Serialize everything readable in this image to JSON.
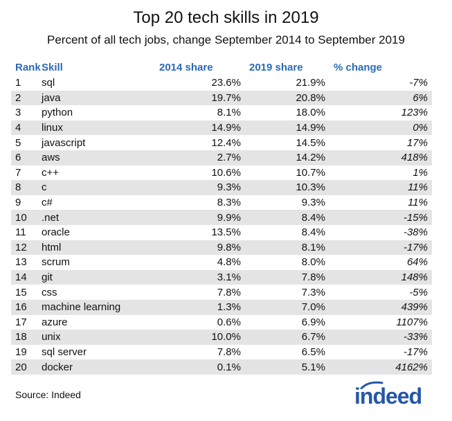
{
  "chart_data": {
    "type": "table",
    "title": "Top 20 tech skills in 2019",
    "subtitle": "Percent of all tech jobs, change September 2014 to September 2019",
    "columns": [
      "Rank",
      "Skill",
      "2014 share",
      "2019 share",
      "% change"
    ],
    "rows": [
      {
        "rank": "1",
        "skill": "sql",
        "share_2014": "23.6%",
        "share_2019": "21.9%",
        "change": "-7%"
      },
      {
        "rank": "2",
        "skill": "java",
        "share_2014": "19.7%",
        "share_2019": "20.8%",
        "change": "6%"
      },
      {
        "rank": "3",
        "skill": "python",
        "share_2014": "8.1%",
        "share_2019": "18.0%",
        "change": "123%"
      },
      {
        "rank": "4",
        "skill": "linux",
        "share_2014": "14.9%",
        "share_2019": "14.9%",
        "change": "0%"
      },
      {
        "rank": "5",
        "skill": "javascript",
        "share_2014": "12.4%",
        "share_2019": "14.5%",
        "change": "17%"
      },
      {
        "rank": "6",
        "skill": "aws",
        "share_2014": "2.7%",
        "share_2019": "14.2%",
        "change": "418%"
      },
      {
        "rank": "7",
        "skill": "c++",
        "share_2014": "10.6%",
        "share_2019": "10.7%",
        "change": "1%"
      },
      {
        "rank": "8",
        "skill": "c",
        "share_2014": "9.3%",
        "share_2019": "10.3%",
        "change": "11%"
      },
      {
        "rank": "9",
        "skill": "c#",
        "share_2014": "8.3%",
        "share_2019": "9.3%",
        "change": "11%"
      },
      {
        "rank": "10",
        "skill": ".net",
        "share_2014": "9.9%",
        "share_2019": "8.4%",
        "change": "-15%"
      },
      {
        "rank": "11",
        "skill": "oracle",
        "share_2014": "13.5%",
        "share_2019": "8.4%",
        "change": "-38%"
      },
      {
        "rank": "12",
        "skill": "html",
        "share_2014": "9.8%",
        "share_2019": "8.1%",
        "change": "-17%"
      },
      {
        "rank": "13",
        "skill": "scrum",
        "share_2014": "4.8%",
        "share_2019": "8.0%",
        "change": "64%"
      },
      {
        "rank": "14",
        "skill": "git",
        "share_2014": "3.1%",
        "share_2019": "7.8%",
        "change": "148%"
      },
      {
        "rank": "15",
        "skill": "css",
        "share_2014": "7.8%",
        "share_2019": "7.3%",
        "change": "-5%"
      },
      {
        "rank": "16",
        "skill": "machine learning",
        "share_2014": "1.3%",
        "share_2019": "7.0%",
        "change": "439%"
      },
      {
        "rank": "17",
        "skill": "azure",
        "share_2014": "0.6%",
        "share_2019": "6.9%",
        "change": "1107%"
      },
      {
        "rank": "18",
        "skill": "unix",
        "share_2014": "10.0%",
        "share_2019": "6.7%",
        "change": "-33%"
      },
      {
        "rank": "19",
        "skill": "sql server",
        "share_2014": "7.8%",
        "share_2019": "6.5%",
        "change": "-17%"
      },
      {
        "rank": "20",
        "skill": "docker",
        "share_2014": "0.1%",
        "share_2019": "5.1%",
        "change": "4162%"
      }
    ],
    "source": "Source: Indeed",
    "logo": "indeed"
  },
  "colors": {
    "header_text": "#2a6ab8",
    "row_shade": "#e4e4e4",
    "logo": "#2557a7"
  }
}
